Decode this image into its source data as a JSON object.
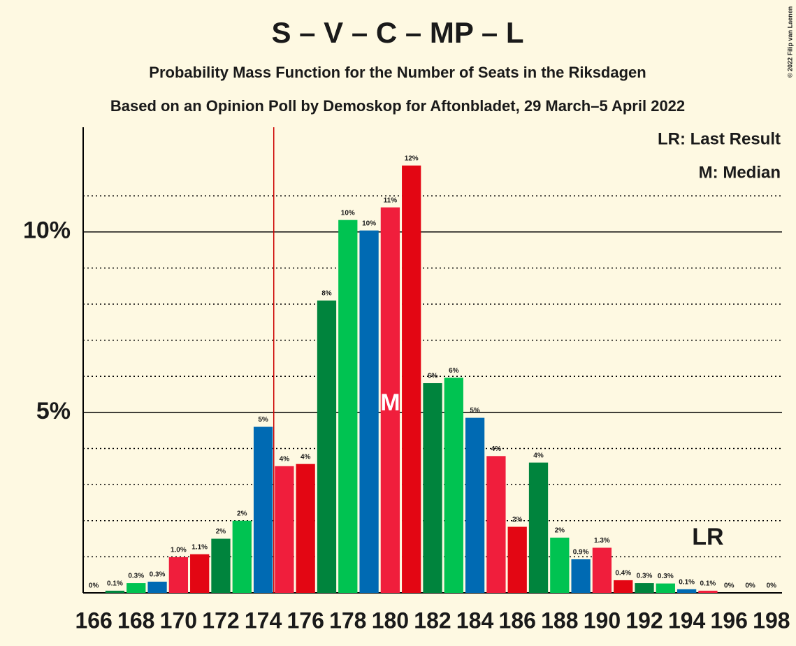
{
  "chart_data": {
    "type": "bar",
    "title": "S – V – C – MP – L",
    "subtitle": "Probability Mass Function for the Number of Seats in the Riksdagen",
    "subtitle2": "Based on an Opinion Poll by Demoskop for Aftonbladet, 29 March–5 April 2022",
    "copyright": "© 2022 Filip van Laenen",
    "legend": [
      "LR: Last Result",
      "M: Median"
    ],
    "x": [
      166,
      167,
      168,
      169,
      170,
      171,
      172,
      173,
      174,
      175,
      176,
      177,
      178,
      179,
      180,
      181,
      182,
      183,
      184,
      185,
      186,
      187,
      188,
      189,
      190,
      191,
      192,
      193,
      194,
      195,
      196,
      197,
      198
    ],
    "values": [
      0,
      0.06,
      0.27,
      0.31,
      0.99,
      1.07,
      1.5,
      2.0,
      4.6,
      3.51,
      3.57,
      8.1,
      10.33,
      10.04,
      10.68,
      11.84,
      5.81,
      5.96,
      4.85,
      3.79,
      1.83,
      3.61,
      1.53,
      0.93,
      1.25,
      0.35,
      0.27,
      0.26,
      0.1,
      0.06,
      0,
      0,
      0
    ],
    "value_labels": [
      "0%",
      "0.1%",
      "0.3%",
      "0.3%",
      "1.0%",
      "1.1%",
      "2%",
      "2%",
      "5%",
      "4%",
      "4%",
      "8%",
      "10%",
      "10%",
      "11%",
      "12%",
      "6%",
      "6%",
      "5%",
      "4%",
      "2%",
      "4%",
      "2%",
      "0.9%",
      "1.3%",
      "0.4%",
      "0.3%",
      "0.3%",
      "0.1%",
      "0.1%",
      "0%",
      "0%",
      "0%"
    ],
    "colors": [
      "#e30613",
      "#00843d",
      "#00c351",
      "#006ab3",
      "#f01e3c",
      "#e30613",
      "#00843d",
      "#00c351",
      "#006ab3",
      "#f01e3c",
      "#e30613",
      "#00843d",
      "#00c351",
      "#006ab3",
      "#f01e3c",
      "#e30613",
      "#00843d",
      "#00c351",
      "#006ab3",
      "#f01e3c",
      "#e30613",
      "#00843d",
      "#00c351",
      "#006ab3",
      "#f01e3c",
      "#e30613",
      "#00843d",
      "#00c351",
      "#006ab3",
      "#f01e3c",
      "#e30613",
      "#00843d",
      "#00c351"
    ],
    "xlim": [
      165.5,
      198.5
    ],
    "xticks": [
      166,
      168,
      170,
      172,
      174,
      176,
      178,
      180,
      182,
      184,
      186,
      188,
      190,
      192,
      194,
      196,
      198
    ],
    "ylim": [
      0,
      12.9
    ],
    "yticks": [
      {
        "value": 5,
        "label": "5%"
      },
      {
        "value": 10,
        "label": "10%"
      }
    ],
    "minor_yticks": [
      1,
      2,
      3,
      4,
      6,
      7,
      8,
      9,
      11
    ],
    "majority": 175,
    "median": 180,
    "median_label": "M",
    "last_result": 195,
    "last_result_label": "LR"
  }
}
